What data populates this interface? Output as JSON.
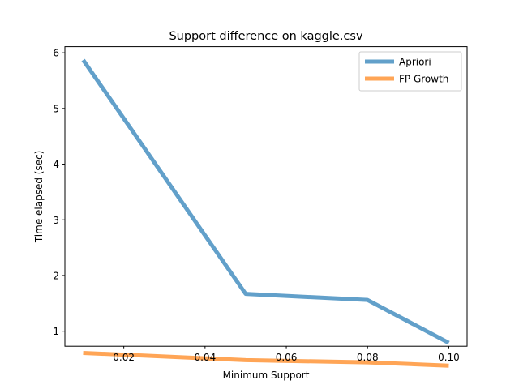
{
  "chart_data": {
    "type": "line",
    "title": "Support difference on kaggle.csv",
    "xlabel": "Minimum Support",
    "ylabel": "Time elapsed (sec)",
    "xlim": [
      0.0055,
      0.1045
    ],
    "ylim": [
      0.73,
      6.11
    ],
    "x_ticks": [
      0.02,
      0.04,
      0.06,
      0.08,
      0.1
    ],
    "x_tick_labels": [
      "0.02",
      "0.04",
      "0.06",
      "0.08",
      "0.10"
    ],
    "y_ticks": [
      1,
      2,
      3,
      4,
      5,
      6
    ],
    "y_tick_labels": [
      "1",
      "2",
      "3",
      "4",
      "5",
      "6"
    ],
    "x": [
      0.01,
      0.05,
      0.08,
      0.1
    ],
    "series": [
      {
        "name": "Apriori",
        "values": [
          5.87,
          1.67,
          1.56,
          0.79
        ],
        "color": "#1f77b4"
      },
      {
        "name": "FP Growth",
        "values": [
          0.61,
          0.48,
          0.44,
          0.38
        ],
        "color": "#ff7f0e"
      }
    ],
    "grid": false,
    "legend_position": "top-right"
  }
}
